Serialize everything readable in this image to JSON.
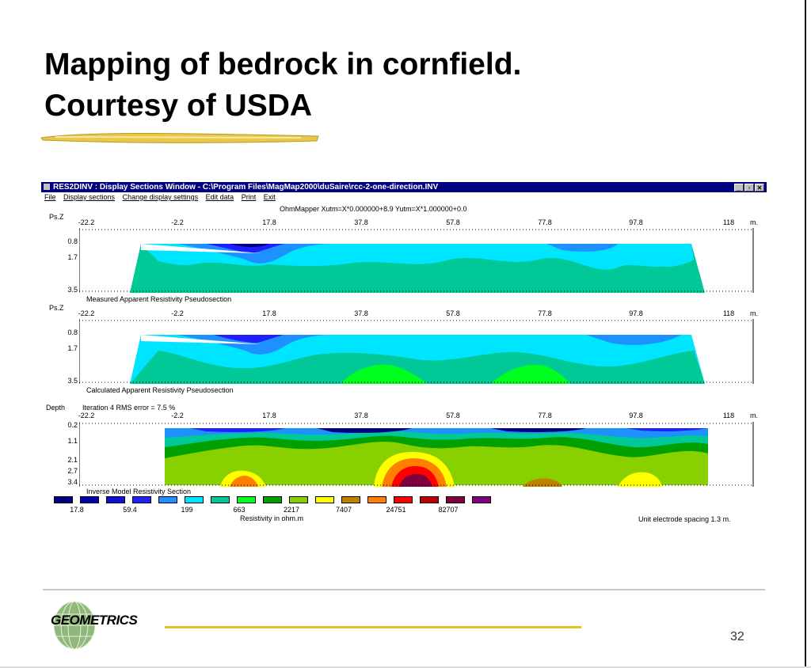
{
  "slide": {
    "title_line1": "Mapping of bedrock in cornfield.",
    "title_line2": "Courtesy of USDA",
    "logo_text": "GEOMETRICS",
    "page_number": "32"
  },
  "window": {
    "title": "RES2DINV : Display Sections Window - C:\\Program Files\\MagMap2000\\duSaire\\rcc-2-one-direction.INV",
    "menu": [
      "File",
      "Display sections",
      "Change display settings",
      "Edit data",
      "Print",
      "Exit"
    ],
    "header_text": "OhmMapper  Xutm=X*0.000000+8.9  Yutm=X*1.000000+0.0",
    "x_ticks": [
      "-22.2",
      "-2.2",
      "17.8",
      "37.8",
      "57.8",
      "77.8",
      "97.8",
      "118"
    ],
    "x_unit": "m."
  },
  "sections": [
    {
      "axis_label": "Ps.Z",
      "y_ticks": [
        "0.8",
        "1.7",
        "3.5"
      ],
      "caption": "Measured Apparent Resistivity Pseudosection"
    },
    {
      "axis_label": "Ps.Z",
      "y_ticks": [
        "0.8",
        "1.7",
        "3.5"
      ],
      "caption": "Calculated Apparent Resistivity Pseudosection"
    },
    {
      "axis_label": "Depth",
      "subtitle": "Iteration 4 RMS error = 7.5 %",
      "y_ticks": [
        "0.2",
        "1.1",
        "2.1",
        "2.7",
        "3.4"
      ],
      "caption": "Inverse Model Resistivity Section"
    }
  ],
  "legend": {
    "colors": [
      "#000080",
      "#0000a8",
      "#1010d8",
      "#2020ff",
      "#1e90ff",
      "#00e5ff",
      "#00c896",
      "#00ff20",
      "#00a000",
      "#88d000",
      "#ffff00",
      "#c08000",
      "#ff8000",
      "#ff0000",
      "#c00000",
      "#800040",
      "#800080"
    ],
    "values": [
      "17.8",
      "59.4",
      "199",
      "663",
      "2217",
      "7407",
      "24751",
      "82707"
    ],
    "unit_label": "Resistivity in ohm.m",
    "spacing_note": "Unit electrode spacing 1.3 m."
  }
}
